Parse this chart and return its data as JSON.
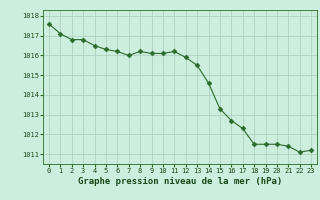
{
  "x": [
    0,
    1,
    2,
    3,
    4,
    5,
    6,
    7,
    8,
    9,
    10,
    11,
    12,
    13,
    14,
    15,
    16,
    17,
    18,
    19,
    20,
    21,
    22,
    23
  ],
  "y": [
    1017.6,
    1017.1,
    1016.8,
    1016.8,
    1016.5,
    1016.3,
    1016.2,
    1016.0,
    1016.2,
    1016.1,
    1016.1,
    1016.2,
    1015.9,
    1015.5,
    1014.6,
    1013.3,
    1012.7,
    1012.3,
    1011.5,
    1011.5,
    1011.5,
    1011.4,
    1011.1,
    1011.2
  ],
  "line_color": "#2d6a2d",
  "marker": "D",
  "marker_size": 2.5,
  "bg_color": "#cceedd",
  "grid_color": "#aaccbb",
  "xlabel": "Graphe pression niveau de la mer (hPa)",
  "xlabel_fontsize": 6.5,
  "tick_label_color": "#1a4a1a",
  "ylim": [
    1010.5,
    1018.3
  ],
  "xlim": [
    -0.5,
    23.5
  ],
  "yticks": [
    1011,
    1012,
    1013,
    1014,
    1015,
    1016,
    1017,
    1018
  ],
  "xticks": [
    0,
    1,
    2,
    3,
    4,
    5,
    6,
    7,
    8,
    9,
    10,
    11,
    12,
    13,
    14,
    15,
    16,
    17,
    18,
    19,
    20,
    21,
    22,
    23
  ],
  "tick_fontsize": 5.0,
  "linewidth": 0.8
}
